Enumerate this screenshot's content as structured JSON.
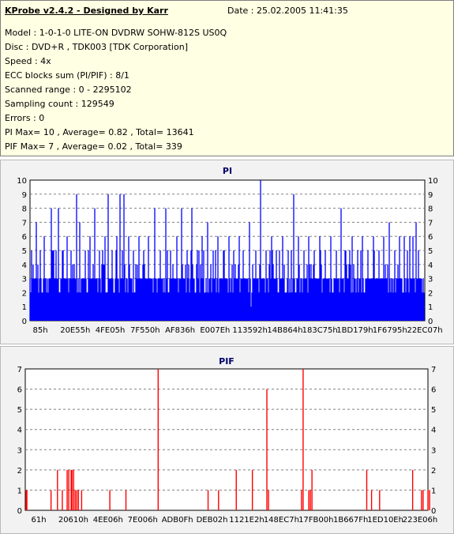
{
  "info": {
    "title": "KProbe v2.4.2 - Designed by Karr",
    "date": "Date : 25.02.2005 11:41:35",
    "lines": [
      "Model : 1-0-1-0 LITE-ON DVDRW SOHW-812S  US0Q",
      "Disc : DVD+R , TDK003 [TDK Corporation]",
      "Speed : 4x",
      "ECC blocks sum (PI/PIF) : 8/1",
      "Scanned range : 0 - 2295102",
      "Sampling count : 129549",
      "Errors : 0",
      "PI Max= 10 , Average= 0.82 , Total= 13641",
      "PIF Max= 7 , Average= 0.02 , Total= 339"
    ]
  },
  "chart_data": [
    {
      "type": "bar",
      "title": "PI",
      "ylim": [
        0,
        10
      ],
      "yticks": [
        0,
        1,
        2,
        3,
        4,
        5,
        6,
        7,
        8,
        9,
        10
      ],
      "grid": true,
      "color": "#0000ff",
      "x_tick_labels": [
        "85h",
        "20E55h",
        "4FE05h",
        "7F550h",
        "AF836h",
        "E007Eh",
        "113592h",
        "14B864h",
        "183C75h",
        "1BD179h",
        "1F6795h",
        "22EC07h"
      ],
      "x_range": [
        0,
        2295102
      ],
      "baseline_level": 3,
      "peaks": [
        {
          "x": 2,
          "v": 5
        },
        {
          "x": 4,
          "v": 4
        },
        {
          "x": 8,
          "v": 7
        },
        {
          "x": 13,
          "v": 5
        },
        {
          "x": 18,
          "v": 6
        },
        {
          "x": 27,
          "v": 8
        },
        {
          "x": 30,
          "v": 5
        },
        {
          "x": 36,
          "v": 8
        },
        {
          "x": 42,
          "v": 5
        },
        {
          "x": 47,
          "v": 6
        },
        {
          "x": 52,
          "v": 5
        },
        {
          "x": 59,
          "v": 9
        },
        {
          "x": 63,
          "v": 7
        },
        {
          "x": 70,
          "v": 5
        },
        {
          "x": 76,
          "v": 6
        },
        {
          "x": 82,
          "v": 8
        },
        {
          "x": 88,
          "v": 5
        },
        {
          "x": 95,
          "v": 6
        },
        {
          "x": 99,
          "v": 9
        },
        {
          "x": 104,
          "v": 5
        },
        {
          "x": 110,
          "v": 6
        },
        {
          "x": 114,
          "v": 9
        },
        {
          "x": 119,
          "v": 9
        },
        {
          "x": 125,
          "v": 6
        },
        {
          "x": 131,
          "v": 5
        },
        {
          "x": 138,
          "v": 6
        },
        {
          "x": 144,
          "v": 5
        },
        {
          "x": 150,
          "v": 6
        },
        {
          "x": 158,
          "v": 8
        },
        {
          "x": 165,
          "v": 5
        },
        {
          "x": 172,
          "v": 8
        },
        {
          "x": 178,
          "v": 5
        },
        {
          "x": 186,
          "v": 6
        },
        {
          "x": 192,
          "v": 8
        },
        {
          "x": 199,
          "v": 5
        },
        {
          "x": 205,
          "v": 8
        },
        {
          "x": 212,
          "v": 5
        },
        {
          "x": 218,
          "v": 6
        },
        {
          "x": 225,
          "v": 7
        },
        {
          "x": 232,
          "v": 5
        },
        {
          "x": 238,
          "v": 6
        },
        {
          "x": 245,
          "v": 5
        },
        {
          "x": 252,
          "v": 6
        },
        {
          "x": 258,
          "v": 5
        },
        {
          "x": 265,
          "v": 6
        },
        {
          "x": 270,
          "v": 5
        },
        {
          "x": 278,
          "v": 7
        },
        {
          "x": 286,
          "v": 5
        },
        {
          "x": 292,
          "v": 10
        },
        {
          "x": 299,
          "v": 5
        },
        {
          "x": 306,
          "v": 6
        },
        {
          "x": 312,
          "v": 5
        },
        {
          "x": 320,
          "v": 6
        },
        {
          "x": 327,
          "v": 5
        },
        {
          "x": 334,
          "v": 9
        },
        {
          "x": 340,
          "v": 6
        },
        {
          "x": 347,
          "v": 5
        },
        {
          "x": 353,
          "v": 6
        },
        {
          "x": 360,
          "v": 5
        },
        {
          "x": 367,
          "v": 6
        },
        {
          "x": 374,
          "v": 5
        },
        {
          "x": 381,
          "v": 6
        },
        {
          "x": 388,
          "v": 5
        },
        {
          "x": 394,
          "v": 8
        },
        {
          "x": 400,
          "v": 5
        },
        {
          "x": 408,
          "v": 6
        },
        {
          "x": 415,
          "v": 5
        },
        {
          "x": 421,
          "v": 6
        },
        {
          "x": 428,
          "v": 5
        },
        {
          "x": 435,
          "v": 6
        },
        {
          "x": 442,
          "v": 5
        },
        {
          "x": 448,
          "v": 6
        },
        {
          "x": 455,
          "v": 7
        },
        {
          "x": 462,
          "v": 5
        },
        {
          "x": 468,
          "v": 6
        },
        {
          "x": 474,
          "v": 6
        },
        {
          "x": 478,
          "v": 5
        },
        {
          "x": 481,
          "v": 6
        },
        {
          "x": 485,
          "v": 6
        },
        {
          "x": 489,
          "v": 7
        },
        {
          "x": 492,
          "v": 5
        }
      ],
      "dips": [
        {
          "x": 280,
          "v": 1
        }
      ]
    },
    {
      "type": "bar",
      "title": "PIF",
      "ylim": [
        0,
        7
      ],
      "yticks": [
        0,
        1,
        2,
        3,
        4,
        5,
        6,
        7
      ],
      "grid": true,
      "color": "#ff0000",
      "x_tick_labels": [
        "61h",
        "20610h",
        "4EE06h",
        "7E006h",
        "ADB0Fh",
        "DEB02h",
        "1121E2h",
        "148EC7h",
        "17FB00h",
        "1B667Fh",
        "1ED10Eh",
        "223E06h"
      ],
      "x_range": [
        0,
        2295102
      ],
      "bars": [
        {
          "x": 1,
          "v": 1
        },
        {
          "x": 2,
          "v": 1
        },
        {
          "x": 32,
          "v": 1
        },
        {
          "x": 40,
          "v": 2
        },
        {
          "x": 46,
          "v": 1
        },
        {
          "x": 52,
          "v": 2
        },
        {
          "x": 54,
          "v": 2
        },
        {
          "x": 57,
          "v": 2
        },
        {
          "x": 58,
          "v": 2
        },
        {
          "x": 60,
          "v": 2
        },
        {
          "x": 62,
          "v": 1
        },
        {
          "x": 64,
          "v": 1
        },
        {
          "x": 66,
          "v": 1
        },
        {
          "x": 70,
          "v": 1
        },
        {
          "x": 105,
          "v": 1
        },
        {
          "x": 125,
          "v": 1
        },
        {
          "x": 165,
          "v": 7
        },
        {
          "x": 227,
          "v": 1
        },
        {
          "x": 240,
          "v": 1
        },
        {
          "x": 262,
          "v": 2
        },
        {
          "x": 282,
          "v": 2
        },
        {
          "x": 300,
          "v": 6
        },
        {
          "x": 302,
          "v": 1
        },
        {
          "x": 343,
          "v": 1
        },
        {
          "x": 345,
          "v": 7
        },
        {
          "x": 352,
          "v": 1
        },
        {
          "x": 354,
          "v": 1
        },
        {
          "x": 356,
          "v": 2
        },
        {
          "x": 424,
          "v": 2
        },
        {
          "x": 430,
          "v": 1
        },
        {
          "x": 440,
          "v": 1
        },
        {
          "x": 481,
          "v": 2
        },
        {
          "x": 492,
          "v": 1
        },
        {
          "x": 494,
          "v": 1
        },
        {
          "x": 500,
          "v": 1
        },
        {
          "x": 502,
          "v": 1
        }
      ]
    }
  ]
}
